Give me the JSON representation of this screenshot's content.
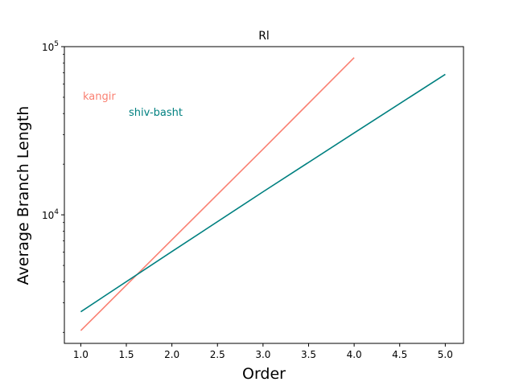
{
  "chart_data": {
    "type": "line",
    "title": "Rl",
    "xlabel": "Order",
    "ylabel": "Average Branch Length",
    "xlim": [
      0.82,
      5.2
    ],
    "ylim": [
      1720,
      100000
    ],
    "yscale": "log",
    "grid": false,
    "x_ticks": [
      1.0,
      1.5,
      2.0,
      2.5,
      3.0,
      3.5,
      4.0,
      4.5,
      5.0
    ],
    "x_tick_labels": [
      "1.0",
      "1.5",
      "2.0",
      "2.5",
      "3.0",
      "3.5",
      "4.0",
      "4.5",
      "5.0"
    ],
    "y_ticks": [
      {
        "value": 10000,
        "base": "10",
        "exp": "4"
      },
      {
        "value": 100000,
        "base": "10",
        "exp": "5"
      }
    ],
    "series": [
      {
        "name": "kangir",
        "color": "#fa8072",
        "x": [
          1,
          2,
          3,
          4
        ],
        "y": [
          2050,
          7100,
          24600,
          86000
        ]
      },
      {
        "name": "shiv-basht",
        "color": "#008080",
        "x": [
          1,
          2,
          3,
          4,
          5
        ],
        "y": [
          2650,
          6050,
          13700,
          30700,
          68500
        ]
      }
    ]
  }
}
